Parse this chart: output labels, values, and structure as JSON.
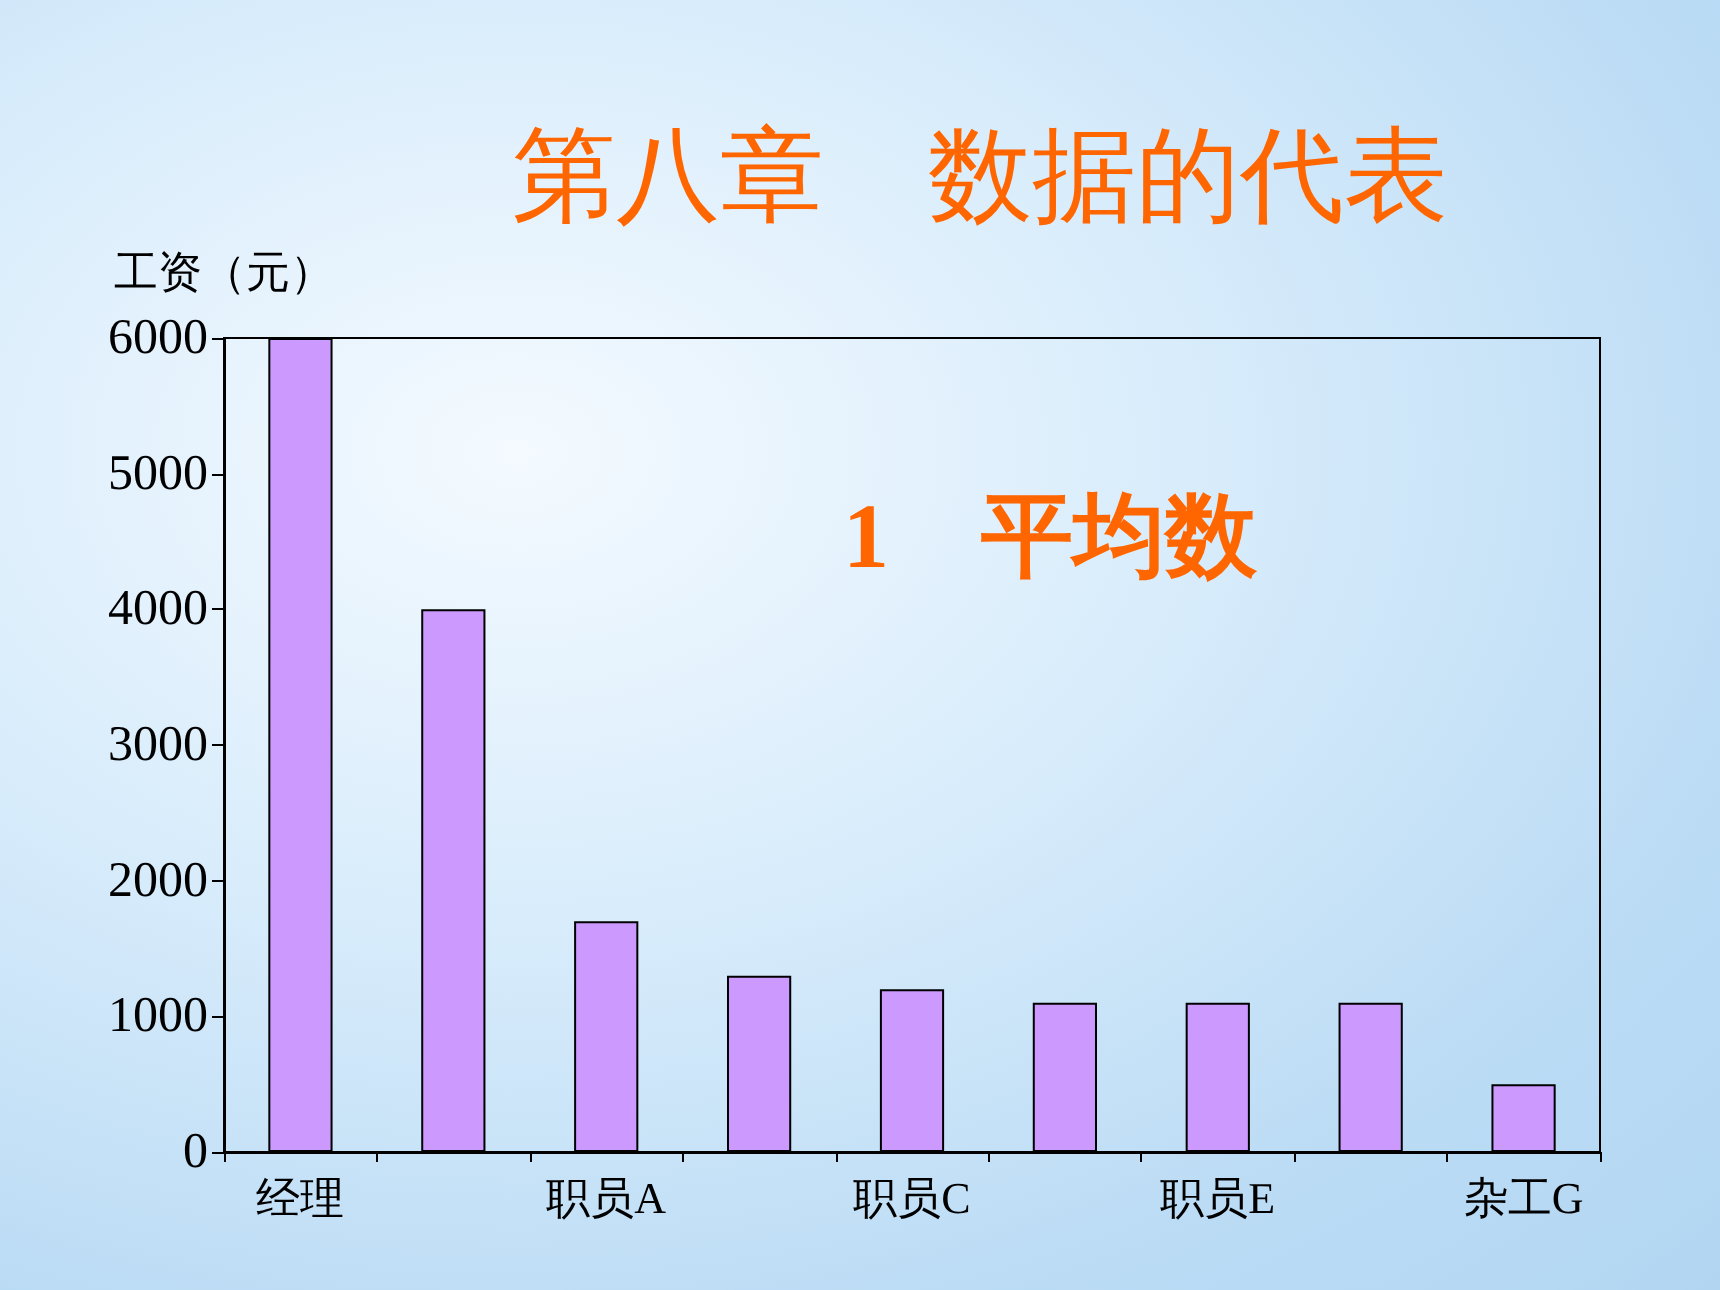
{
  "chart_data": {
    "type": "bar",
    "title": "第八章　数据的代表",
    "subtitle": "1　平均数",
    "ylabel": "工资（元）",
    "categories": [
      "经理",
      null,
      "职员A",
      null,
      "职员C",
      null,
      "职员E",
      null,
      "杂工G"
    ],
    "values": [
      6000,
      4000,
      1700,
      1300,
      1200,
      1100,
      1100,
      1100,
      500
    ],
    "color": "#cc99ff",
    "ylim": [
      0,
      6000
    ],
    "yticks": [
      0,
      1000,
      2000,
      3000,
      4000,
      5000,
      6000
    ]
  }
}
